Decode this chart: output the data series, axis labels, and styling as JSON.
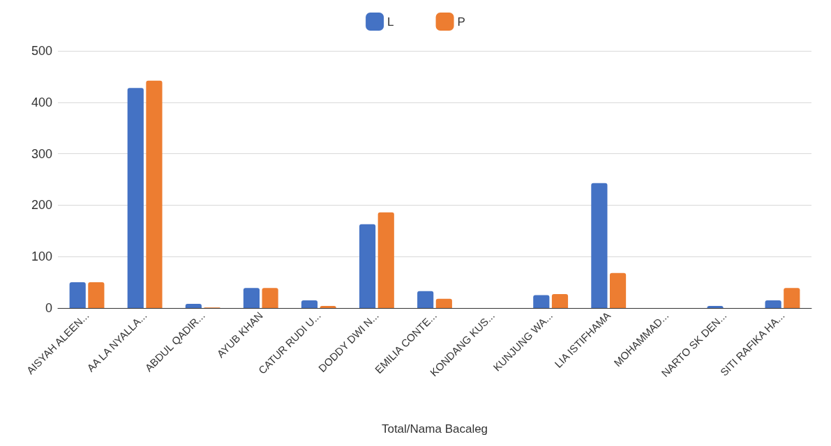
{
  "chart_data": {
    "type": "bar",
    "xlabel": "Total/Nama Bacaleg",
    "categories": [
      "AISYAH ALEEN...",
      "AA LA NYALLA...",
      "ABDUL QADIR...",
      "AYUB KHAN",
      "CATUR RUDI U...",
      "DODDY DWI N...",
      "EMILIA CONTE...",
      "KONDANG KUS...",
      "KUNJUNG WA...",
      "LIA ISTIFHAMA",
      "MOHAMMAD...",
      "NARTO SK DEN...",
      "SITI RAFIKA HA..."
    ],
    "series": [
      {
        "name": "L",
        "color": "#4472c4",
        "values": [
          50,
          428,
          8,
          39,
          15,
          163,
          33,
          0,
          25,
          243,
          0,
          4,
          15
        ]
      },
      {
        "name": "P",
        "color": "#ed7d31",
        "values": [
          50,
          442,
          1,
          39,
          4,
          186,
          18,
          0,
          27,
          68,
          0,
          0,
          39
        ]
      }
    ],
    "ylim": [
      0,
      500
    ],
    "yticks": [
      0,
      100,
      200,
      300,
      400,
      500
    ],
    "grid": "y",
    "legend": "top"
  }
}
